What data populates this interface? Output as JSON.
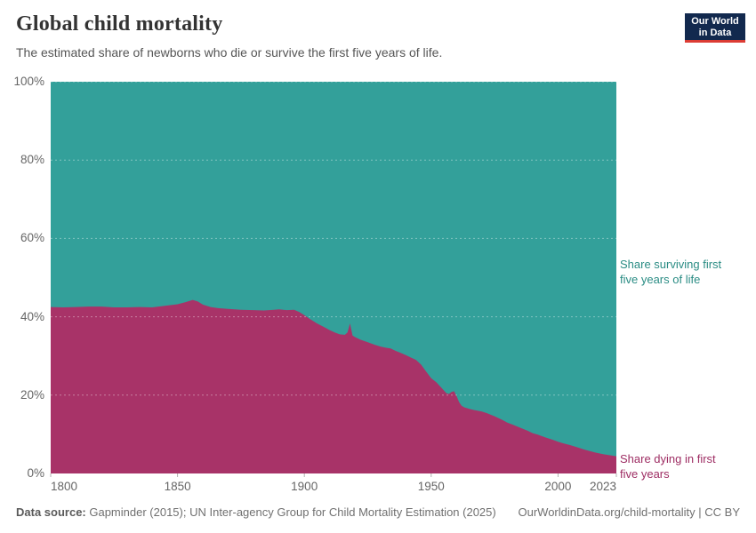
{
  "header": {
    "title": "Global child mortality",
    "subtitle": "The estimated share of newborns who die or survive the first five years of life.",
    "logo": {
      "line1": "Our World",
      "line2": "in Data"
    }
  },
  "annotations": {
    "surviving_line1": "Share surviving first",
    "surviving_line2": "five years of life",
    "dying_line1": "Share dying in first",
    "dying_line2": "five years"
  },
  "footer": {
    "source_label": "Data source:",
    "source_text": " Gapminder (2015); UN Inter-agency Group for Child Mortality Estimation (2025)",
    "link_text": "OurWorldinData.org/child-mortality | CC BY"
  },
  "colors": {
    "surviving_area": "#33a09a",
    "dying_area": "#a83368",
    "surviving_text": "#2a8c84",
    "dying_text": "#9e2d63",
    "gridline": "rgba(255,255,255,0.38)",
    "tick": "#b0b0b0",
    "axis_text": "#666666",
    "logo_bg": "#12294e",
    "logo_red": "#dc3c34"
  },
  "chart_data": {
    "type": "area",
    "stacked": true,
    "title": "Global child mortality",
    "xlabel": "",
    "ylabel": "",
    "x_range": [
      1800,
      2023
    ],
    "y_range": [
      0,
      100
    ],
    "grid": "dashed horizontal",
    "legend_position": "right-edge annotations",
    "y_ticks": [
      {
        "label": "0%",
        "value": 0
      },
      {
        "label": "20%",
        "value": 20
      },
      {
        "label": "40%",
        "value": 40
      },
      {
        "label": "60%",
        "value": 60
      },
      {
        "label": "80%",
        "value": 80
      },
      {
        "label": "100%",
        "value": 100
      }
    ],
    "x_ticks": [
      {
        "label": "1800",
        "value": 1800,
        "align": "left"
      },
      {
        "label": "1850",
        "value": 1850,
        "align": "center"
      },
      {
        "label": "1900",
        "value": 1900,
        "align": "center"
      },
      {
        "label": "1950",
        "value": 1950,
        "align": "center"
      },
      {
        "label": "2000",
        "value": 2000,
        "align": "center"
      },
      {
        "label": "2023",
        "value": 2023,
        "align": "right"
      }
    ],
    "series": [
      {
        "name": "Share dying in first five years",
        "color": "#a83368",
        "unit": "%",
        "points": [
          [
            1800,
            42.5
          ],
          [
            1805,
            42.4
          ],
          [
            1810,
            42.5
          ],
          [
            1815,
            42.6
          ],
          [
            1820,
            42.6
          ],
          [
            1825,
            42.4
          ],
          [
            1830,
            42.4
          ],
          [
            1835,
            42.5
          ],
          [
            1840,
            42.4
          ],
          [
            1845,
            42.8
          ],
          [
            1850,
            43.2
          ],
          [
            1853,
            43.7
          ],
          [
            1856,
            44.3
          ],
          [
            1858,
            43.9
          ],
          [
            1860,
            43.1
          ],
          [
            1863,
            42.5
          ],
          [
            1866,
            42.2
          ],
          [
            1870,
            42.0
          ],
          [
            1875,
            41.8
          ],
          [
            1880,
            41.7
          ],
          [
            1884,
            41.6
          ],
          [
            1888,
            41.8
          ],
          [
            1890,
            41.9
          ],
          [
            1893,
            41.7
          ],
          [
            1896,
            41.8
          ],
          [
            1898,
            41.2
          ],
          [
            1900,
            40.4
          ],
          [
            1902,
            39.5
          ],
          [
            1905,
            38.3
          ],
          [
            1908,
            37.3
          ],
          [
            1910,
            36.6
          ],
          [
            1912,
            36.0
          ],
          [
            1914,
            35.5
          ],
          [
            1916,
            35.4
          ],
          [
            1917,
            36.0
          ],
          [
            1918,
            38.3
          ],
          [
            1919,
            35.2
          ],
          [
            1920,
            34.8
          ],
          [
            1922,
            34.2
          ],
          [
            1925,
            33.5
          ],
          [
            1928,
            32.8
          ],
          [
            1930,
            32.4
          ],
          [
            1932,
            32.1
          ],
          [
            1934,
            31.9
          ],
          [
            1936,
            31.3
          ],
          [
            1938,
            30.8
          ],
          [
            1940,
            30.2
          ],
          [
            1942,
            29.6
          ],
          [
            1944,
            29.0
          ],
          [
            1946,
            27.8
          ],
          [
            1948,
            26.0
          ],
          [
            1950,
            24.3
          ],
          [
            1952,
            23.3
          ],
          [
            1954,
            21.9
          ],
          [
            1956,
            20.5
          ],
          [
            1957,
            20.3
          ],
          [
            1958,
            20.8
          ],
          [
            1959,
            21.0
          ],
          [
            1960,
            19.8
          ],
          [
            1961,
            18.2
          ],
          [
            1962,
            17.3
          ],
          [
            1963,
            16.9
          ],
          [
            1965,
            16.5
          ],
          [
            1967,
            16.2
          ],
          [
            1970,
            15.8
          ],
          [
            1972,
            15.4
          ],
          [
            1975,
            14.6
          ],
          [
            1978,
            13.7
          ],
          [
            1980,
            13.0
          ],
          [
            1982,
            12.5
          ],
          [
            1985,
            11.7
          ],
          [
            1988,
            10.9
          ],
          [
            1990,
            10.3
          ],
          [
            1992,
            9.9
          ],
          [
            1995,
            9.2
          ],
          [
            1998,
            8.6
          ],
          [
            2000,
            8.1
          ],
          [
            2002,
            7.7
          ],
          [
            2005,
            7.2
          ],
          [
            2008,
            6.6
          ],
          [
            2010,
            6.2
          ],
          [
            2012,
            5.8
          ],
          [
            2015,
            5.3
          ],
          [
            2018,
            4.9
          ],
          [
            2020,
            4.7
          ],
          [
            2023,
            4.4
          ]
        ]
      },
      {
        "name": "Share surviving first five years of life",
        "color": "#33a09a",
        "unit": "%",
        "derived": "100 minus 'Share dying in first five years' (stacked to 100%)"
      }
    ]
  }
}
